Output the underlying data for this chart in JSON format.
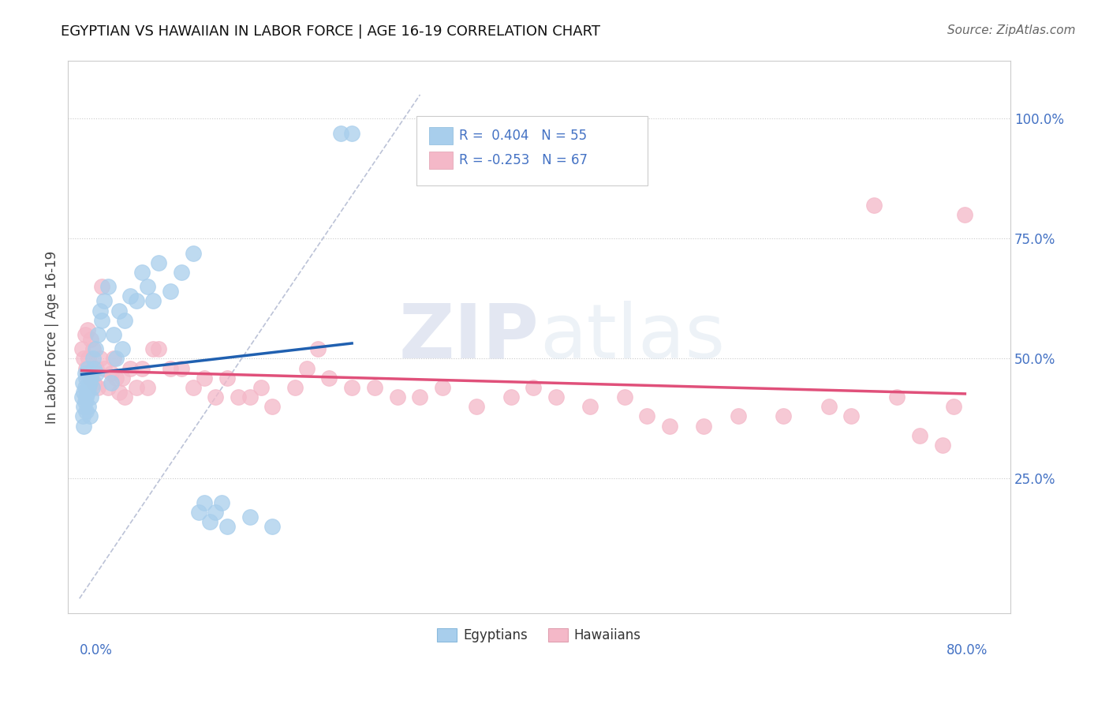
{
  "title": "EGYPTIAN VS HAWAIIAN IN LABOR FORCE | AGE 16-19 CORRELATION CHART",
  "source": "Source: ZipAtlas.com",
  "ylabel": "In Labor Force | Age 16-19",
  "color_egyptian": "#A8CEEC",
  "color_hawaiian": "#F4B8C8",
  "color_trendline_egyptian": "#2060B0",
  "color_trendline_hawaiian": "#E0507A",
  "color_dashed": "#B0B8D0",
  "watermark_zip": "ZIP",
  "watermark_atlas": "atlas",
  "egyptian_x": [
    0.002,
    0.003,
    0.003,
    0.004,
    0.004,
    0.004,
    0.005,
    0.005,
    0.005,
    0.006,
    0.006,
    0.006,
    0.007,
    0.007,
    0.008,
    0.008,
    0.009,
    0.009,
    0.01,
    0.01,
    0.011,
    0.012,
    0.013,
    0.014,
    0.015,
    0.016,
    0.018,
    0.02,
    0.022,
    0.025,
    0.028,
    0.03,
    0.032,
    0.035,
    0.038,
    0.04,
    0.045,
    0.05,
    0.055,
    0.06,
    0.065,
    0.07,
    0.08,
    0.09,
    0.1,
    0.105,
    0.11,
    0.115,
    0.12,
    0.125,
    0.13,
    0.15,
    0.17,
    0.23,
    0.24
  ],
  "egyptian_y": [
    0.42,
    0.38,
    0.45,
    0.4,
    0.43,
    0.36,
    0.44,
    0.41,
    0.47,
    0.39,
    0.42,
    0.46,
    0.43,
    0.48,
    0.44,
    0.4,
    0.45,
    0.38,
    0.46,
    0.42,
    0.44,
    0.5,
    0.48,
    0.52,
    0.47,
    0.55,
    0.6,
    0.58,
    0.62,
    0.65,
    0.45,
    0.55,
    0.5,
    0.6,
    0.52,
    0.58,
    0.63,
    0.62,
    0.68,
    0.65,
    0.62,
    0.7,
    0.64,
    0.68,
    0.72,
    0.18,
    0.2,
    0.16,
    0.18,
    0.2,
    0.15,
    0.17,
    0.15,
    0.97,
    0.97
  ],
  "hawaiian_x": [
    0.002,
    0.004,
    0.005,
    0.006,
    0.007,
    0.008,
    0.009,
    0.01,
    0.011,
    0.012,
    0.013,
    0.015,
    0.016,
    0.018,
    0.02,
    0.022,
    0.025,
    0.028,
    0.03,
    0.032,
    0.035,
    0.038,
    0.04,
    0.045,
    0.05,
    0.055,
    0.06,
    0.065,
    0.07,
    0.08,
    0.09,
    0.1,
    0.11,
    0.12,
    0.13,
    0.14,
    0.15,
    0.16,
    0.17,
    0.19,
    0.2,
    0.21,
    0.22,
    0.24,
    0.26,
    0.28,
    0.3,
    0.32,
    0.35,
    0.38,
    0.4,
    0.42,
    0.45,
    0.48,
    0.5,
    0.52,
    0.55,
    0.58,
    0.62,
    0.66,
    0.68,
    0.7,
    0.72,
    0.74,
    0.76,
    0.77,
    0.78
  ],
  "hawaiian_y": [
    0.52,
    0.5,
    0.55,
    0.48,
    0.56,
    0.5,
    0.46,
    0.54,
    0.48,
    0.52,
    0.45,
    0.48,
    0.44,
    0.5,
    0.65,
    0.48,
    0.44,
    0.47,
    0.5,
    0.46,
    0.43,
    0.46,
    0.42,
    0.48,
    0.44,
    0.48,
    0.44,
    0.52,
    0.52,
    0.48,
    0.48,
    0.44,
    0.46,
    0.42,
    0.46,
    0.42,
    0.42,
    0.44,
    0.4,
    0.44,
    0.48,
    0.52,
    0.46,
    0.44,
    0.44,
    0.42,
    0.42,
    0.44,
    0.4,
    0.42,
    0.44,
    0.42,
    0.4,
    0.42,
    0.38,
    0.36,
    0.36,
    0.38,
    0.38,
    0.4,
    0.38,
    0.82,
    0.42,
    0.34,
    0.32,
    0.4,
    0.8
  ],
  "xlim": [
    -0.01,
    0.82
  ],
  "ylim": [
    -0.03,
    1.12
  ],
  "yticks": [
    0.25,
    0.5,
    0.75,
    1.0
  ],
  "ytick_labels": [
    "25.0%",
    "50.0%",
    "75.0%",
    "100.0%"
  ]
}
